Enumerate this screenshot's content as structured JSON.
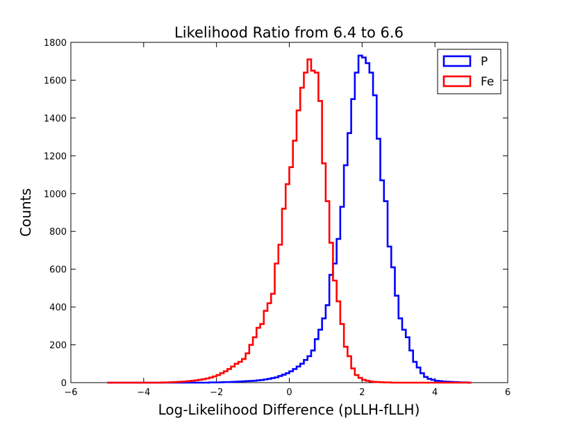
{
  "chart_data": {
    "type": "histogram-step",
    "title": "Likelihood Ratio from 6.4 to 6.6",
    "xlabel": "Log-Likelihood Difference (pLLH-fLLH)",
    "ylabel": "Counts",
    "xlim": [
      -6,
      6
    ],
    "ylim": [
      0,
      1800
    ],
    "xticks": [
      -6,
      -4,
      -2,
      0,
      2,
      4,
      6
    ],
    "yticks": [
      0,
      200,
      400,
      600,
      800,
      1000,
      1200,
      1400,
      1600,
      1800
    ],
    "xtick_labels": [
      "−6",
      "−4",
      "−2",
      "0",
      "2",
      "4",
      "6"
    ],
    "ytick_labels": [
      "0",
      "200",
      "400",
      "600",
      "800",
      "1000",
      "1200",
      "1400",
      "1600",
      "1800"
    ],
    "grid": false,
    "legend_position": "top-right",
    "bin_edges_start": -5,
    "bin_width": 0.1,
    "series": [
      {
        "name": "P",
        "color": "#0000ff",
        "counts": [
          0,
          0,
          0,
          0,
          0,
          0,
          0,
          0,
          0,
          0,
          0,
          0,
          0,
          0,
          0,
          0,
          0,
          0,
          0,
          0,
          0,
          0,
          0,
          0,
          0,
          0,
          0,
          0,
          1,
          1,
          1,
          2,
          3,
          3,
          4,
          5,
          6,
          7,
          8,
          9,
          10,
          12,
          14,
          17,
          20,
          24,
          28,
          35,
          42,
          50,
          60,
          72,
          85,
          100,
          120,
          140,
          170,
          230,
          280,
          340,
          410,
          570,
          630,
          760,
          930,
          1150,
          1320,
          1500,
          1640,
          1730,
          1720,
          1690,
          1640,
          1520,
          1290,
          1070,
          960,
          720,
          610,
          460,
          340,
          280,
          240,
          170,
          110,
          80,
          50,
          30,
          20,
          15,
          10,
          8,
          6,
          5,
          4,
          3,
          2,
          1,
          1,
          0
        ]
      },
      {
        "name": "Fe",
        "color": "#ff0000",
        "counts": [
          0,
          0,
          0,
          0,
          0,
          0,
          0,
          0,
          0,
          0,
          0,
          0,
          0,
          0,
          0,
          1,
          1,
          2,
          3,
          4,
          5,
          6,
          8,
          10,
          12,
          15,
          18,
          22,
          27,
          33,
          40,
          50,
          60,
          72,
          85,
          100,
          110,
          125,
          155,
          200,
          240,
          290,
          310,
          380,
          420,
          470,
          630,
          730,
          920,
          1050,
          1140,
          1280,
          1440,
          1560,
          1640,
          1710,
          1650,
          1640,
          1490,
          1160,
          960,
          740,
          540,
          430,
          310,
          190,
          140,
          75,
          40,
          25,
          15,
          10,
          6,
          4,
          3,
          2,
          1,
          1,
          0,
          0,
          0,
          0,
          0,
          0,
          0,
          0,
          0,
          0,
          0,
          0,
          0,
          0,
          0,
          0,
          0,
          0,
          0,
          0,
          0,
          0
        ]
      }
    ]
  }
}
